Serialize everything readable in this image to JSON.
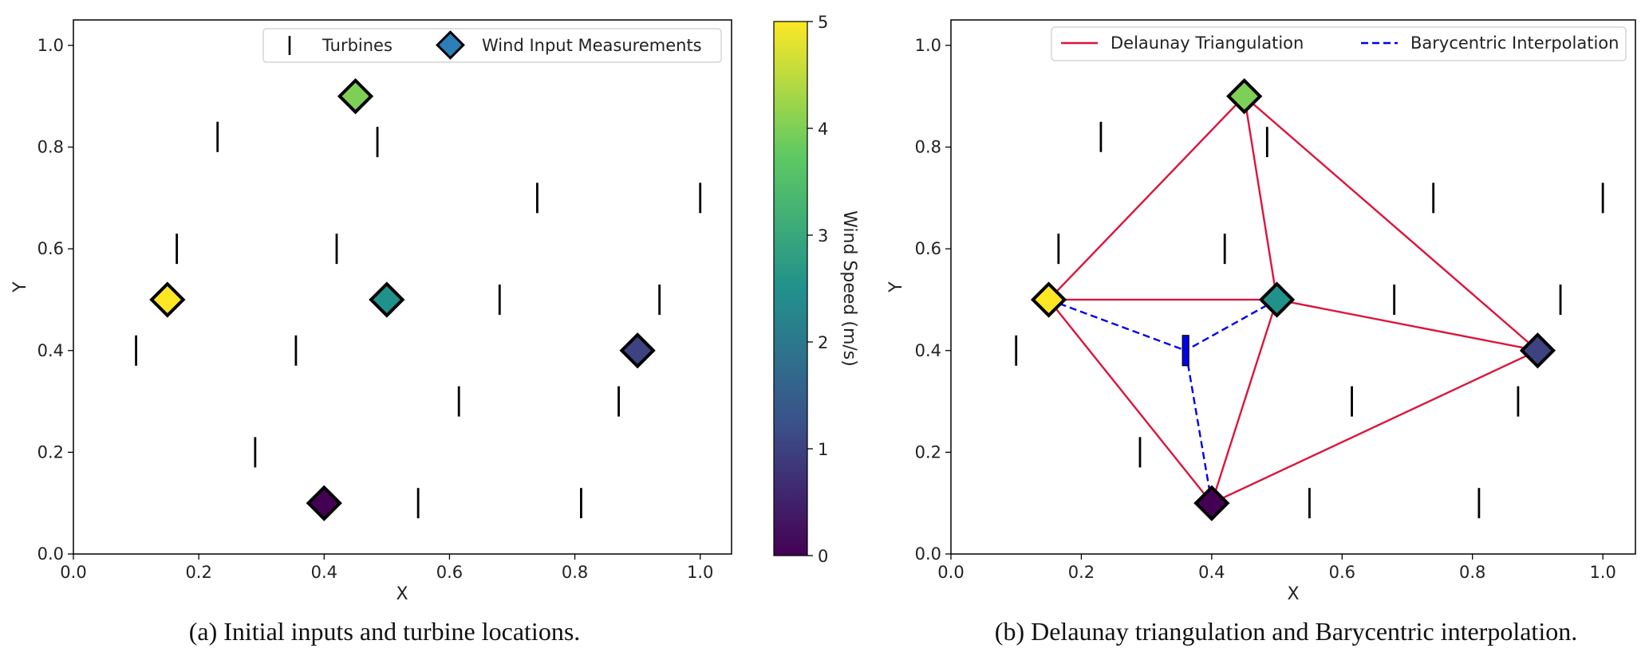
{
  "chart_data": [
    {
      "id": "a",
      "type": "scatter",
      "caption": "(a) Initial inputs and turbine locations.",
      "xlabel": "X",
      "ylabel": "Y",
      "xlim": [
        0.0,
        1.05
      ],
      "ylim": [
        0.0,
        1.05
      ],
      "xticks": [
        "0.0",
        "0.2",
        "0.4",
        "0.6",
        "0.8",
        "1.0"
      ],
      "yticks": [
        "0.0",
        "0.2",
        "0.4",
        "0.6",
        "0.8",
        "1.0"
      ],
      "legend": {
        "placement": "top-right",
        "entries": [
          {
            "marker": "turbine",
            "label": "Turbines"
          },
          {
            "marker": "diamond",
            "label": "Wind Input Measurements",
            "color": "#2c7fb8"
          }
        ]
      },
      "turbines": [
        {
          "x": 0.23,
          "y": 0.82
        },
        {
          "x": 0.485,
          "y": 0.81
        },
        {
          "x": 0.74,
          "y": 0.7
        },
        {
          "x": 1.0,
          "y": 0.7
        },
        {
          "x": 0.165,
          "y": 0.6
        },
        {
          "x": 0.42,
          "y": 0.6
        },
        {
          "x": 0.68,
          "y": 0.5
        },
        {
          "x": 0.935,
          "y": 0.5
        },
        {
          "x": 0.1,
          "y": 0.4
        },
        {
          "x": 0.355,
          "y": 0.4
        },
        {
          "x": 0.615,
          "y": 0.3
        },
        {
          "x": 0.87,
          "y": 0.3
        },
        {
          "x": 0.29,
          "y": 0.2
        },
        {
          "x": 0.55,
          "y": 0.1
        },
        {
          "x": 0.81,
          "y": 0.1
        }
      ],
      "measurements": [
        {
          "x": 0.45,
          "y": 0.9,
          "wind_speed": 4.0
        },
        {
          "x": 0.15,
          "y": 0.5,
          "wind_speed": 5.0
        },
        {
          "x": 0.5,
          "y": 0.5,
          "wind_speed": 2.5
        },
        {
          "x": 0.9,
          "y": 0.4,
          "wind_speed": 1.0
        },
        {
          "x": 0.4,
          "y": 0.1,
          "wind_speed": 0.0
        }
      ],
      "colorbar": {
        "label": "Wind Speed (m/s)",
        "range": [
          0,
          5
        ],
        "ticks": [
          "0",
          "1",
          "2",
          "3",
          "4",
          "5"
        ],
        "colormap": [
          "#440154",
          "#3b528b",
          "#21918c",
          "#5ec962",
          "#fde725"
        ]
      }
    },
    {
      "id": "b",
      "type": "scatter",
      "caption": "(b) Delaunay triangulation and Barycentric interpolation.",
      "xlabel": "X",
      "ylabel": "Y",
      "xlim": [
        0.0,
        1.05
      ],
      "ylim": [
        0.0,
        1.05
      ],
      "xticks": [
        "0.0",
        "0.2",
        "0.4",
        "0.6",
        "0.8",
        "1.0"
      ],
      "yticks": [
        "0.0",
        "0.2",
        "0.4",
        "0.6",
        "0.8",
        "1.0"
      ],
      "legend": {
        "placement": "top-right",
        "entries": [
          {
            "style": "solid",
            "color": "#dc143c",
            "label": "Delaunay Triangulation"
          },
          {
            "style": "dashed",
            "color": "#0000ee",
            "label": "Barycentric Interpolation"
          }
        ]
      },
      "turbines": [
        {
          "x": 0.23,
          "y": 0.82
        },
        {
          "x": 0.485,
          "y": 0.81
        },
        {
          "x": 0.74,
          "y": 0.7
        },
        {
          "x": 1.0,
          "y": 0.7
        },
        {
          "x": 0.165,
          "y": 0.6
        },
        {
          "x": 0.42,
          "y": 0.6
        },
        {
          "x": 0.68,
          "y": 0.5
        },
        {
          "x": 0.935,
          "y": 0.5
        },
        {
          "x": 0.1,
          "y": 0.4
        },
        {
          "x": 0.615,
          "y": 0.3
        },
        {
          "x": 0.87,
          "y": 0.3
        },
        {
          "x": 0.29,
          "y": 0.2
        },
        {
          "x": 0.55,
          "y": 0.1
        },
        {
          "x": 0.81,
          "y": 0.1
        }
      ],
      "highlighted_turbine": {
        "x": 0.36,
        "y": 0.4,
        "color": "#0000ee"
      },
      "measurements": [
        {
          "x": 0.45,
          "y": 0.9,
          "wind_speed": 4.0
        },
        {
          "x": 0.15,
          "y": 0.5,
          "wind_speed": 5.0
        },
        {
          "x": 0.5,
          "y": 0.5,
          "wind_speed": 2.5
        },
        {
          "x": 0.9,
          "y": 0.4,
          "wind_speed": 1.0
        },
        {
          "x": 0.4,
          "y": 0.1,
          "wind_speed": 0.0
        }
      ],
      "triangulation_edges": [
        [
          {
            "x": 0.15,
            "y": 0.5
          },
          {
            "x": 0.45,
            "y": 0.9
          }
        ],
        [
          {
            "x": 0.45,
            "y": 0.9
          },
          {
            "x": 0.9,
            "y": 0.4
          }
        ],
        [
          {
            "x": 0.45,
            "y": 0.9
          },
          {
            "x": 0.5,
            "y": 0.5
          }
        ],
        [
          {
            "x": 0.15,
            "y": 0.5
          },
          {
            "x": 0.5,
            "y": 0.5
          }
        ],
        [
          {
            "x": 0.5,
            "y": 0.5
          },
          {
            "x": 0.9,
            "y": 0.4
          }
        ],
        [
          {
            "x": 0.15,
            "y": 0.5
          },
          {
            "x": 0.4,
            "y": 0.1
          }
        ],
        [
          {
            "x": 0.5,
            "y": 0.5
          },
          {
            "x": 0.4,
            "y": 0.1
          }
        ],
        [
          {
            "x": 0.4,
            "y": 0.1
          },
          {
            "x": 0.9,
            "y": 0.4
          }
        ]
      ],
      "interpolation_lines": [
        [
          {
            "x": 0.15,
            "y": 0.5
          },
          {
            "x": 0.36,
            "y": 0.4
          }
        ],
        [
          {
            "x": 0.5,
            "y": 0.5
          },
          {
            "x": 0.36,
            "y": 0.4
          }
        ],
        [
          {
            "x": 0.4,
            "y": 0.1
          },
          {
            "x": 0.36,
            "y": 0.4
          }
        ]
      ]
    }
  ]
}
